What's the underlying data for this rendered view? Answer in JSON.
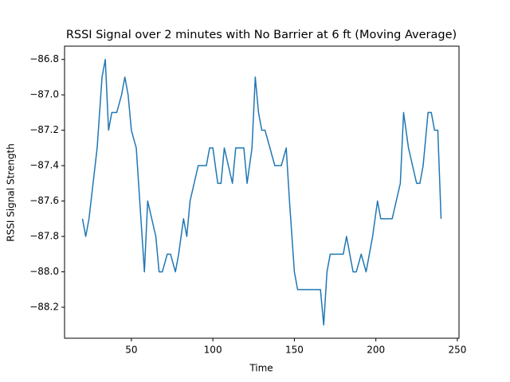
{
  "chart_data": {
    "type": "line",
    "title": "RSSI Signal over 2 minutes with No Barrier at 6 ft (Moving Average)",
    "x_label": "Time",
    "y_label": "RSSI Signal Strength",
    "x": [
      20,
      22,
      24,
      29,
      32,
      34,
      36,
      38,
      41,
      44,
      46,
      48,
      50,
      53,
      58,
      60,
      65,
      67,
      69,
      72,
      74,
      77,
      79,
      82,
      84,
      86,
      91,
      96,
      98,
      100,
      103,
      105,
      107,
      112,
      114,
      119,
      121,
      124,
      126,
      128,
      130,
      132,
      138,
      142,
      145,
      147,
      150,
      152,
      166,
      168,
      170,
      172,
      180,
      182,
      186,
      188,
      191,
      194,
      198,
      201,
      203,
      210,
      215,
      217,
      220,
      225,
      227,
      229,
      232,
      234,
      236,
      238,
      240
    ],
    "series": [
      {
        "name": "RSSI",
        "color": "#1f77b4",
        "values": [
          -87.7,
          -87.8,
          -87.7,
          -87.3,
          -86.9,
          -86.8,
          -87.2,
          -87.1,
          -87.1,
          -87.0,
          -86.9,
          -87.0,
          -87.2,
          -87.3,
          -88.0,
          -87.6,
          -87.8,
          -88.0,
          -88.0,
          -87.9,
          -87.9,
          -88.0,
          -87.9,
          -87.7,
          -87.8,
          -87.6,
          -87.4,
          -87.4,
          -87.3,
          -87.3,
          -87.5,
          -87.5,
          -87.3,
          -87.5,
          -87.3,
          -87.3,
          -87.5,
          -87.3,
          -86.9,
          -87.1,
          -87.2,
          -87.2,
          -87.4,
          -87.4,
          -87.3,
          -87.6,
          -88.0,
          -88.1,
          -88.1,
          -88.3,
          -88.0,
          -87.9,
          -87.9,
          -87.8,
          -88.0,
          -88.0,
          -87.9,
          -88.0,
          -87.8,
          -87.6,
          -87.7,
          -87.7,
          -87.5,
          -87.1,
          -87.3,
          -87.5,
          -87.5,
          -87.4,
          -87.1,
          -87.1,
          -87.2,
          -87.2,
          -87.7
        ]
      }
    ],
    "xlim": [
      9,
      251
    ],
    "ylim": [
      -88.375,
      -86.725
    ],
    "xticks": [
      50,
      100,
      150,
      200,
      250
    ],
    "yticks": [
      {
        "value": -88.2,
        "label": "−88.2"
      },
      {
        "value": -88.0,
        "label": "−88.0"
      },
      {
        "value": -87.8,
        "label": "−87.8"
      },
      {
        "value": -87.6,
        "label": "−87.6"
      },
      {
        "value": -87.4,
        "label": "−87.4"
      },
      {
        "value": -87.2,
        "label": "−87.2"
      },
      {
        "value": -87.0,
        "label": "−87.0"
      },
      {
        "value": -86.8,
        "label": "−86.8"
      }
    ],
    "grid": false
  }
}
